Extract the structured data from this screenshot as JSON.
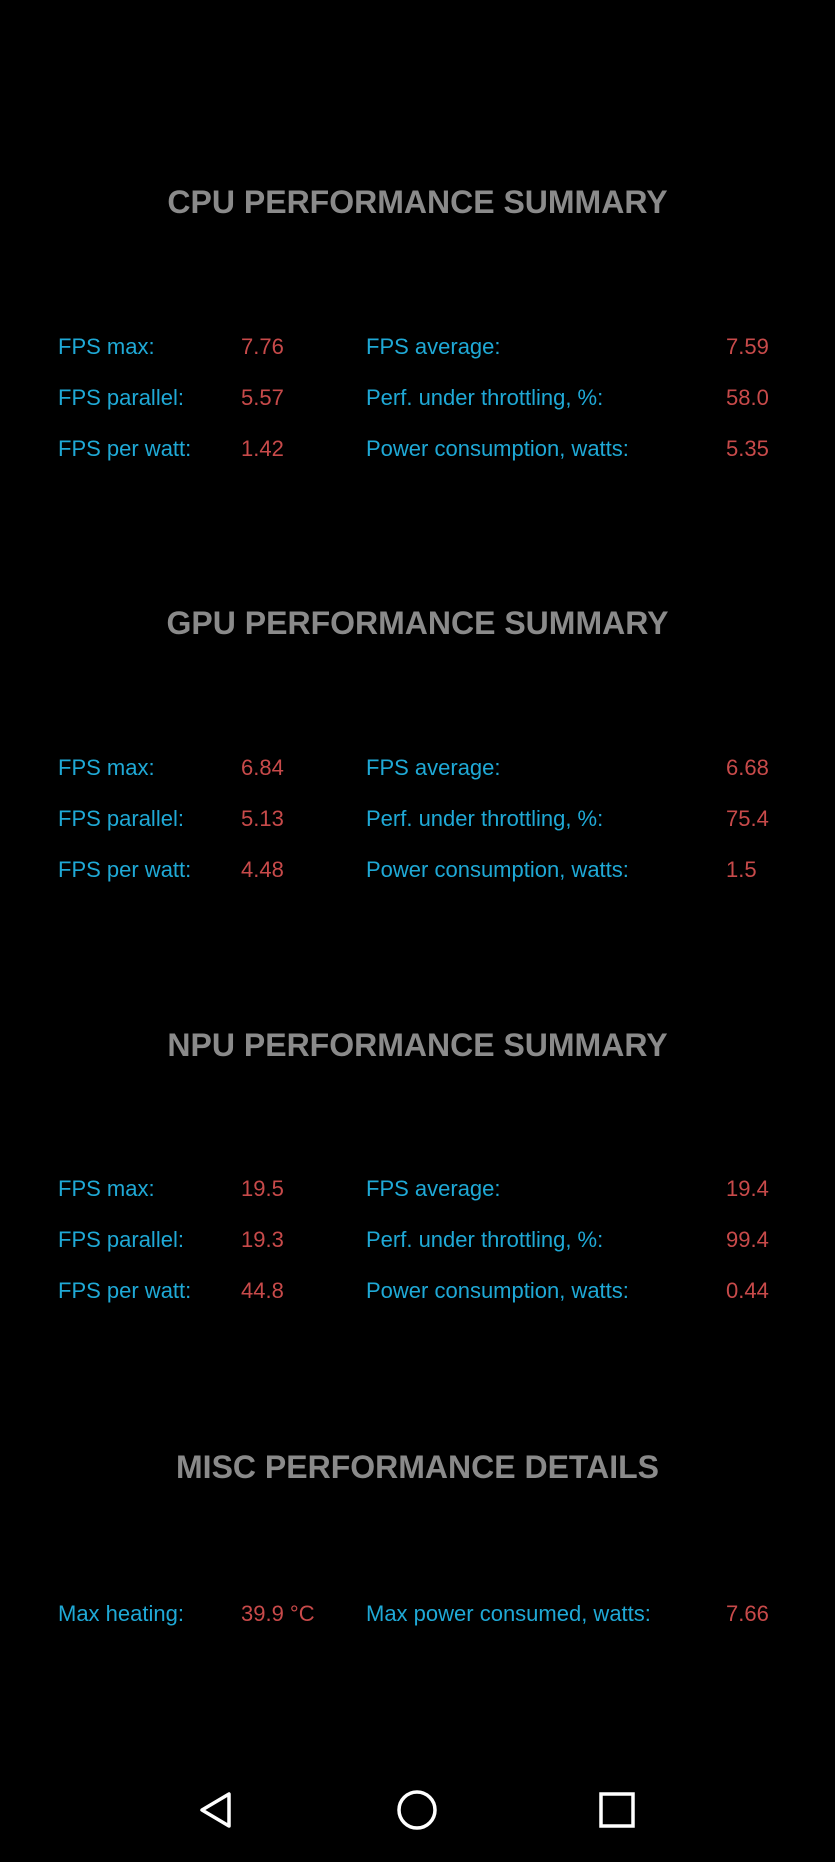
{
  "sections": [
    {
      "title": "CPU PERFORMANCE SUMMARY",
      "rows": [
        {
          "label1": "FPS max:",
          "value1": "7.76",
          "label2": "FPS average:",
          "value2": "7.59"
        },
        {
          "label1": "FPS parallel:",
          "value1": "5.57",
          "label2": "Perf. under throttling, %:",
          "value2": "58.0"
        },
        {
          "label1": "FPS per watt:",
          "value1": "1.42",
          "label2": "Power consumption, watts:",
          "value2": "5.35"
        }
      ]
    },
    {
      "title": "GPU PERFORMANCE SUMMARY",
      "rows": [
        {
          "label1": "FPS max:",
          "value1": "6.84",
          "label2": "FPS average:",
          "value2": "6.68"
        },
        {
          "label1": "FPS parallel:",
          "value1": "5.13",
          "label2": "Perf. under throttling, %:",
          "value2": "75.4"
        },
        {
          "label1": "FPS per watt:",
          "value1": "4.48",
          "label2": "Power consumption, watts:",
          "value2": "1.5"
        }
      ]
    },
    {
      "title": "NPU PERFORMANCE SUMMARY",
      "rows": [
        {
          "label1": "FPS max:",
          "value1": "19.5",
          "label2": "FPS average:",
          "value2": "19.4"
        },
        {
          "label1": "FPS parallel:",
          "value1": "19.3",
          "label2": "Perf. under throttling, %:",
          "value2": "99.4"
        },
        {
          "label1": "FPS per watt:",
          "value1": "44.8",
          "label2": "Power consumption, watts:",
          "value2": "0.44"
        }
      ]
    },
    {
      "title": "MISC PERFORMANCE DETAILS",
      "rows": [
        {
          "label1": "Max heating:",
          "value1": "39.9 °C",
          "label2": "Max power consumed, watts:",
          "value2": "7.66"
        }
      ]
    }
  ],
  "navbar": {
    "back_icon": "back-triangle-icon",
    "home_icon": "home-circle-icon",
    "recents_icon": "recents-square-icon",
    "icon_color": "#ffffff"
  },
  "colors": {
    "background": "#000000",
    "title": "#8a8a8a",
    "label": "#1fa9d6",
    "value": "#c84a4a"
  }
}
